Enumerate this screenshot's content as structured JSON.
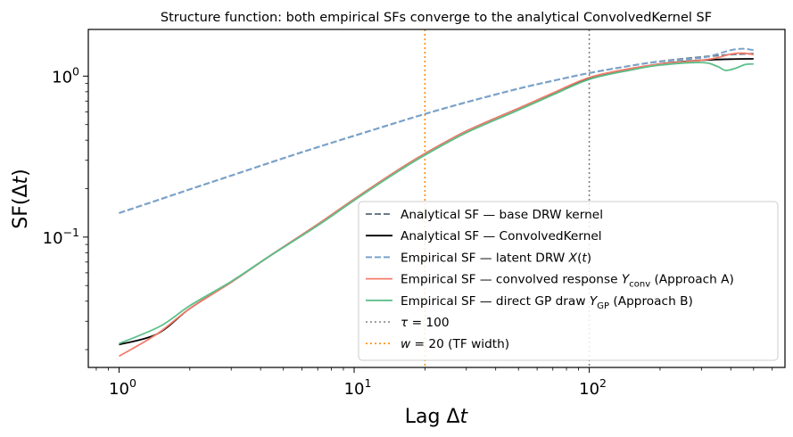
{
  "chart_data": {
    "type": "line",
    "title": "Structure function: both empirical SFs converge to the analytical ConvolvedKernel SF",
    "xlabel": "Lag Δt",
    "ylabel": "SF(Δt)",
    "xscale": "log",
    "yscale": "log",
    "xlim": [
      0.74,
      680
    ],
    "ylim": [
      0.0155,
      1.95
    ],
    "x_ticks": [
      {
        "value": 1,
        "base": "10",
        "exp": "0"
      },
      {
        "value": 10,
        "base": "10",
        "exp": "1"
      },
      {
        "value": 100,
        "base": "10",
        "exp": "2"
      }
    ],
    "y_ticks": [
      {
        "value": 0.1,
        "base": "10",
        "exp": "−1"
      },
      {
        "value": 1,
        "base": "10",
        "exp": "0"
      }
    ],
    "grid": false,
    "legend_position": "lower-right",
    "series": [
      {
        "name": "Analytical SF — base DRW kernel",
        "color": "#6b7b8c",
        "style": "dashed",
        "width": 2,
        "x": [
          1,
          1.5,
          2,
          3,
          5,
          7,
          10,
          15,
          20,
          30,
          50,
          70,
          100,
          150,
          200,
          300,
          400,
          500
        ],
        "y": [
          0.141,
          0.172,
          0.198,
          0.241,
          0.309,
          0.362,
          0.426,
          0.512,
          0.582,
          0.688,
          0.836,
          0.935,
          1.045,
          1.16,
          1.235,
          1.315,
          1.36,
          1.38
        ]
      },
      {
        "name": "Analytical SF — ConvolvedKernel",
        "color": "#000000",
        "style": "solid",
        "width": 1.8,
        "x": [
          1,
          1.45,
          2,
          3,
          4.3,
          7,
          10,
          15,
          20,
          30,
          50,
          70,
          100,
          150,
          200,
          300,
          400,
          500
        ],
        "y": [
          0.0215,
          0.025,
          0.036,
          0.0525,
          0.075,
          0.12,
          0.172,
          0.255,
          0.33,
          0.455,
          0.63,
          0.78,
          0.97,
          1.105,
          1.19,
          1.255,
          1.275,
          1.28
        ]
      },
      {
        "name": "Empirical SF — latent DRW X(t)",
        "color": "#7aa3cc",
        "style": "dashed",
        "width": 2,
        "x": [
          1,
          1.5,
          2,
          3,
          5,
          7,
          10,
          15,
          20,
          30,
          50,
          70,
          100,
          150,
          200,
          300,
          350,
          400,
          450,
          500
        ],
        "y": [
          0.141,
          0.172,
          0.198,
          0.241,
          0.309,
          0.362,
          0.426,
          0.512,
          0.582,
          0.688,
          0.836,
          0.935,
          1.045,
          1.16,
          1.23,
          1.3,
          1.37,
          1.45,
          1.48,
          1.45
        ]
      },
      {
        "name": "Empirical SF — convolved response Y_conv (Approach A)",
        "color": "#f47c6a",
        "style": "solid",
        "width": 1.8,
        "x": [
          1,
          1.45,
          2,
          3,
          4.3,
          7,
          10,
          15,
          20,
          30,
          50,
          70,
          100,
          150,
          200,
          300,
          350,
          400,
          450,
          500
        ],
        "y": [
          0.0182,
          0.025,
          0.036,
          0.0525,
          0.075,
          0.12,
          0.172,
          0.255,
          0.33,
          0.455,
          0.63,
          0.785,
          0.98,
          1.115,
          1.19,
          1.255,
          1.3,
          1.37,
          1.39,
          1.36
        ]
      },
      {
        "name": "Empirical SF — direct GP draw Y_GP (Approach B)",
        "color": "#5cbf8a",
        "style": "solid",
        "width": 1.8,
        "x": [
          1,
          1.5,
          2,
          3,
          4.3,
          7,
          10,
          15,
          20,
          30,
          50,
          70,
          100,
          150,
          200,
          300,
          350,
          380,
          420,
          460,
          500
        ],
        "y": [
          0.0218,
          0.028,
          0.0375,
          0.053,
          0.075,
          0.118,
          0.169,
          0.25,
          0.323,
          0.445,
          0.615,
          0.765,
          0.955,
          1.09,
          1.17,
          1.215,
          1.15,
          1.085,
          1.12,
          1.18,
          1.19
        ]
      }
    ],
    "vlines": [
      {
        "name": "τ = 100",
        "x": 100,
        "color": "#808080",
        "style": "dotted"
      },
      {
        "name": "w = 20  (TF width)",
        "x": 20,
        "color": "#ff8c00",
        "style": "dotted"
      }
    ]
  },
  "legend": {
    "items": [
      {
        "parts": [
          {
            "t": "Analytical SF — base DRW kernel"
          }
        ]
      },
      {
        "parts": [
          {
            "t": "Analytical SF — ConvolvedKernel"
          }
        ]
      },
      {
        "parts": [
          {
            "t": "Empirical SF — latent DRW "
          },
          {
            "t": "X",
            "i": true
          },
          {
            "t": "("
          },
          {
            "t": "t",
            "i": true
          },
          {
            "t": ")"
          }
        ]
      },
      {
        "parts": [
          {
            "t": "Empirical SF — convolved response "
          },
          {
            "t": "Y",
            "i": true
          },
          {
            "t": "conv",
            "sub": true
          },
          {
            "t": " (Approach A)"
          }
        ]
      },
      {
        "parts": [
          {
            "t": "Empirical SF — direct GP draw "
          },
          {
            "t": "Y",
            "i": true
          },
          {
            "t": "GP",
            "sub": true
          },
          {
            "t": " (Approach B)"
          }
        ]
      },
      {
        "parts": [
          {
            "t": "τ",
            "i": true
          },
          {
            "t": " = 100"
          }
        ]
      },
      {
        "parts": [
          {
            "t": "w",
            "i": true
          },
          {
            "t": " = 20  (TF width)"
          }
        ]
      }
    ]
  }
}
